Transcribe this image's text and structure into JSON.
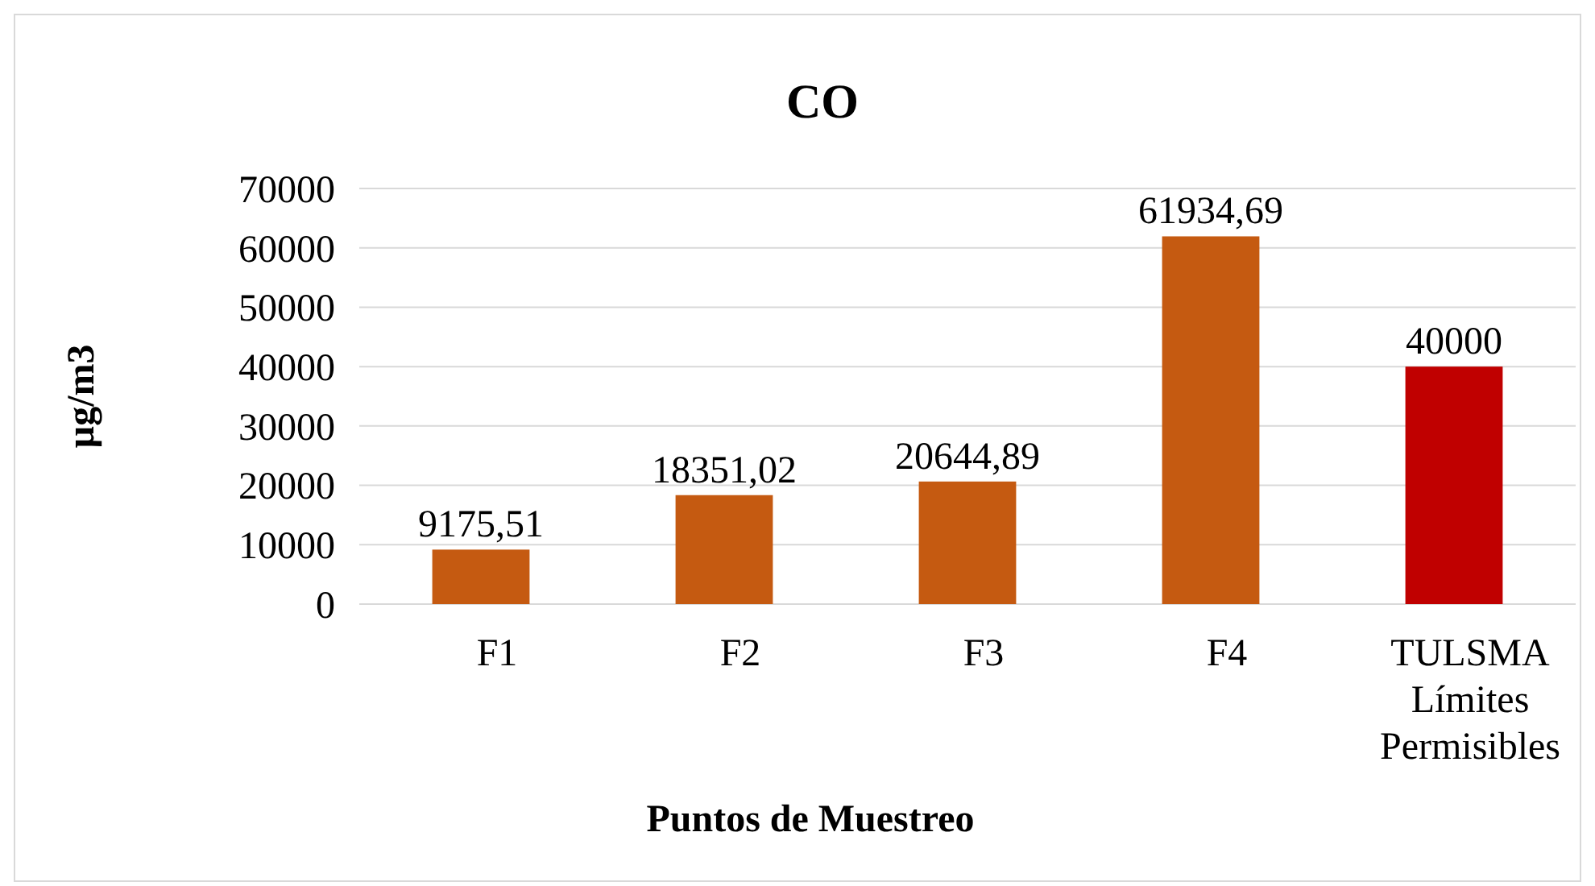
{
  "chart_data": {
    "type": "bar",
    "title": "CO",
    "xlabel": "Puntos de Muestreo",
    "ylabel": "µg/m3",
    "categories": [
      "F1",
      "F2",
      "F3",
      "F4",
      "TULSMA Límites Permisibles"
    ],
    "values": [
      9175.51,
      18351.02,
      20644.89,
      61934.69,
      40000
    ],
    "colors": [
      "#c55a11",
      "#c55a11",
      "#c55a11",
      "#c55a11",
      "#c00000"
    ],
    "value_labels": [
      "9175,51",
      "18351,02",
      "20644,89",
      "61934,69",
      "40000"
    ],
    "ylim": [
      0,
      70000
    ],
    "yticks": [
      0,
      10000,
      20000,
      30000,
      40000,
      50000,
      60000,
      70000
    ],
    "grid": "y"
  }
}
